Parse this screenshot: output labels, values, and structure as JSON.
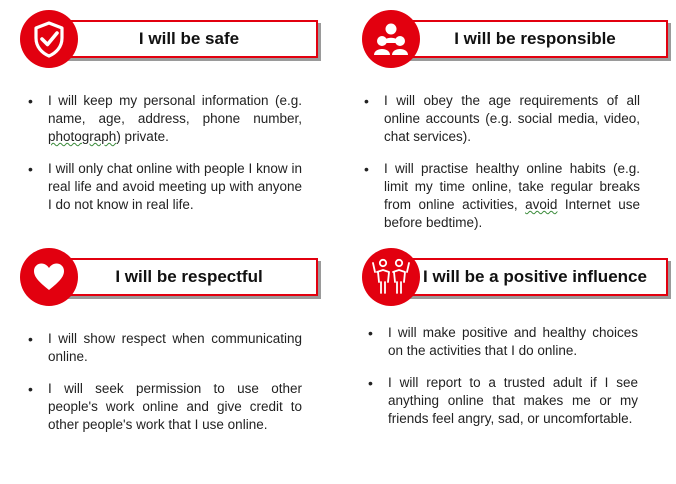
{
  "cards": [
    {
      "title": "I will be safe",
      "icon": "shield-check-icon",
      "items": [
        "I will keep my personal information (e.g. name, age, address, phone number, photograph) private.",
        "I will only chat online with people I know in real life and avoid meeting up with anyone I do not know in real life."
      ]
    },
    {
      "title": "I will be responsible",
      "icon": "people-group-icon",
      "items": [
        "I will obey the age requirements of all online accounts (e.g. social media, video, chat services).",
        "I will practise healthy online habits (e.g. limit my time online, take regular breaks from online activities, avoid Internet use before bedtime)."
      ]
    },
    {
      "title": "I will be respectful",
      "icon": "heart-icon",
      "items": [
        "I will show respect when communicating online.",
        "I will seek permission to use other people's work online and give credit to other people's work that I use online."
      ]
    },
    {
      "title": "I will be a positive influence",
      "icon": "positive-people-icon",
      "items": [
        "I will make positive and healthy choices on the activities that I do online.",
        "I will report to a trusted adult if I see anything online that makes me or my friends feel angry, sad, or uncomfortable."
      ]
    }
  ],
  "colors": {
    "accent": "#e2000f",
    "shadow": "#9a9a9a"
  }
}
